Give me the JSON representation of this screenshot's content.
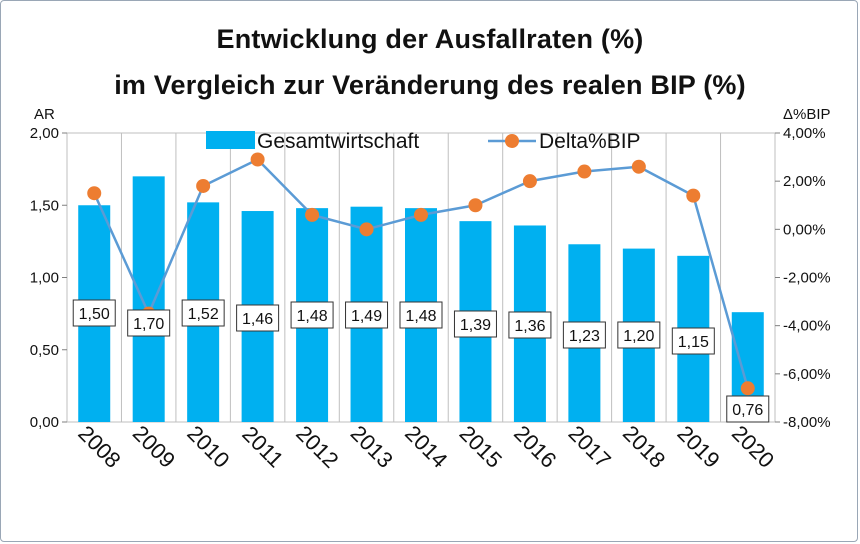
{
  "chart_data": {
    "type": "bar",
    "title_line1": "Entwicklung der Ausfallraten (%)",
    "title_line2": "im Vergleich zur Veränderung des realen BIP (%)",
    "ylabel_left": "AR",
    "ylabel_right": "Δ%BIP",
    "categories": [
      "2008",
      "2009",
      "2010",
      "2011",
      "2012",
      "2013",
      "2014",
      "2015",
      "2016",
      "2017",
      "2018",
      "2019",
      "2020"
    ],
    "series": [
      {
        "name": "Gesamtwirtschaft",
        "kind": "bar",
        "axis": "left",
        "color": "#00b0f0",
        "values": [
          1.5,
          1.7,
          1.52,
          1.46,
          1.48,
          1.49,
          1.48,
          1.39,
          1.36,
          1.23,
          1.2,
          1.15,
          0.76
        ],
        "data_labels": [
          "1,50",
          "1,70",
          "1,52",
          "1,46",
          "1,48",
          "1,49",
          "1,48",
          "1,39",
          "1,36",
          "1,23",
          "1,20",
          "1,15",
          "0,76"
        ]
      },
      {
        "name": "Delta%BIP",
        "kind": "line",
        "axis": "right",
        "line_color": "#5b9bd5",
        "marker_color": "#ed7d31",
        "values": [
          1.5,
          -3.5,
          1.8,
          2.9,
          0.6,
          0.0,
          0.6,
          1.0,
          2.0,
          2.4,
          2.6,
          1.4,
          -6.6
        ]
      }
    ],
    "y_left": {
      "lim": [
        0,
        2.0
      ],
      "ticks": [
        "0,00",
        "0,50",
        "1,00",
        "1,50",
        "2,00"
      ],
      "tick_values": [
        0,
        0.5,
        1.0,
        1.5,
        2.0
      ]
    },
    "y_right": {
      "lim": [
        -8,
        4
      ],
      "ticks": [
        "-8,00%",
        "-6,00%",
        "-4,00%",
        "-2,00%",
        "0,00%",
        "2,00%",
        "4,00%"
      ],
      "tick_values": [
        -8,
        -6,
        -4,
        -2,
        0,
        2,
        4
      ]
    },
    "grid": "vertical",
    "legend_position": "top"
  }
}
